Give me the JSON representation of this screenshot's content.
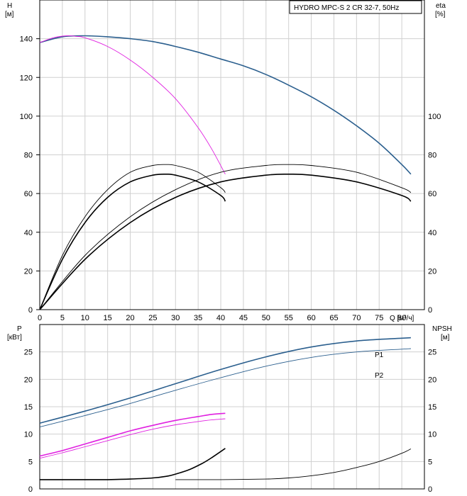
{
  "title": "HYDRO MPC-S 2 CR 32-7, 50Hz",
  "top": {
    "left_axis_label": "H",
    "left_axis_unit": "[м]",
    "right_axis_label": "eta",
    "right_axis_unit": "[%]",
    "x_unit": "Q [м³/ч]",
    "x_ticks": [
      "0",
      "5",
      "10",
      "15",
      "20",
      "25",
      "30",
      "35",
      "40",
      "45",
      "50",
      "55",
      "60",
      "65",
      "70",
      "75",
      "80"
    ],
    "left_ticks": [
      "0",
      "20",
      "40",
      "60",
      "80",
      "100",
      "120",
      "140"
    ],
    "right_ticks": [
      "0",
      "20",
      "40",
      "60",
      "80",
      "100"
    ]
  },
  "bottom": {
    "left_axis_label": "P",
    "left_axis_unit": "[кВт]",
    "right_axis_label": "NPSH",
    "right_axis_unit": "[м]",
    "left_ticks": [
      "0",
      "5",
      "10",
      "15",
      "20",
      "25"
    ],
    "right_ticks": [
      "0",
      "5",
      "10",
      "15",
      "20",
      "25"
    ],
    "p1_label": "P1",
    "p2_label": "P2"
  },
  "colors": {
    "head_2pumps": "#2b5f8e",
    "head_1pump": "#e020e0",
    "efficiency": "#000000",
    "power_2pumps": "#2b5f8e",
    "power_1pump": "#e020e0",
    "npsh": "#000000"
  },
  "chart_data": [
    {
      "type": "line",
      "title": "HYDRO MPC-S 2 CR 32-7, 50Hz",
      "xlabel": "Q [м³/ч]",
      "ylabel": "H [м]",
      "y2label": "eta [%]",
      "xlim": [
        0,
        85
      ],
      "ylim": [
        0,
        160
      ],
      "y2lim": [
        0,
        160
      ],
      "grid": true,
      "series": [
        {
          "color": "#2b5f8e",
          "axis": "left",
          "x": [
            0,
            5,
            10,
            15,
            20,
            25,
            30,
            35,
            40,
            45,
            50,
            55,
            60,
            65,
            70,
            75,
            80,
            82
          ],
          "y": [
            138,
            141,
            141.5,
            141,
            140,
            138.5,
            136,
            133,
            129.5,
            126,
            121.5,
            116,
            110,
            103,
            95,
            86,
            75,
            70
          ]
        },
        {
          "color": "#e020e0",
          "axis": "left",
          "x": [
            0,
            3,
            6,
            8,
            10,
            15,
            20,
            25,
            30,
            35,
            38,
            41
          ],
          "y": [
            138,
            140.5,
            141.5,
            141.2,
            140.5,
            136,
            129,
            120,
            109,
            94,
            83,
            70
          ]
        },
        {
          "color": "#000000",
          "axis": "right",
          "x": [
            0,
            5,
            10,
            15,
            20,
            25,
            28,
            30,
            35,
            40,
            41
          ],
          "y": [
            0,
            26,
            45,
            58,
            66,
            69.5,
            70,
            69.5,
            66,
            59,
            56
          ]
        },
        {
          "color": "#000000",
          "axis": "right",
          "x": [
            0,
            5,
            10,
            15,
            20,
            25,
            28,
            30,
            35,
            40,
            41
          ],
          "y": [
            0,
            28,
            48,
            62,
            71,
            74.5,
            75,
            74.5,
            71,
            63,
            60.5
          ]
        },
        {
          "color": "#000000",
          "axis": "right",
          "x": [
            0,
            10,
            20,
            30,
            40,
            50,
            55,
            60,
            70,
            80,
            82
          ],
          "y": [
            0,
            26,
            45,
            58,
            66,
            69.5,
            70,
            69.5,
            66,
            59,
            56
          ]
        },
        {
          "color": "#000000",
          "axis": "right",
          "x": [
            0,
            10,
            20,
            30,
            40,
            50,
            55,
            60,
            70,
            80,
            82
          ],
          "y": [
            0,
            28,
            48,
            62,
            71,
            74.5,
            75,
            74.5,
            71,
            63,
            60.5
          ]
        }
      ]
    },
    {
      "type": "line",
      "xlabel": "Q [м³/ч]",
      "ylabel": "P [кВт]",
      "y2label": "NPSH [м]",
      "xlim": [
        0,
        85
      ],
      "ylim": [
        0,
        30
      ],
      "y2lim": [
        0,
        30
      ],
      "grid": true,
      "series": [
        {
          "name": "P1",
          "color": "#2b5f8e",
          "axis": "left",
          "x": [
            0,
            10,
            20,
            30,
            40,
            50,
            60,
            70,
            80,
            82
          ],
          "y": [
            12,
            14.2,
            16.6,
            19.2,
            21.8,
            24.1,
            25.9,
            27,
            27.5,
            27.6
          ]
        },
        {
          "name": "P2",
          "color": "#2b5f8e",
          "axis": "left",
          "x": [
            0,
            10,
            20,
            30,
            40,
            50,
            60,
            70,
            80,
            82
          ],
          "y": [
            11.3,
            13.4,
            15.6,
            18,
            20.3,
            22.4,
            24,
            25,
            25.5,
            25.6
          ]
        },
        {
          "color": "#e020e0",
          "axis": "left",
          "x": [
            0,
            5,
            10,
            15,
            20,
            25,
            30,
            35,
            38,
            41
          ],
          "y": [
            6,
            7,
            8.2,
            9.4,
            10.6,
            11.6,
            12.5,
            13.2,
            13.6,
            13.8
          ]
        },
        {
          "color": "#e020e0",
          "axis": "left",
          "x": [
            0,
            5,
            10,
            15,
            20,
            25,
            30,
            35,
            38,
            41
          ],
          "y": [
            5.6,
            6.6,
            7.7,
            8.8,
            9.9,
            10.9,
            11.7,
            12.3,
            12.6,
            12.8
          ]
        },
        {
          "color": "#000000",
          "axis": "right",
          "x": [
            0,
            10,
            15,
            20,
            25,
            28,
            30,
            33,
            36,
            38,
            41
          ],
          "y": [
            1.7,
            1.7,
            1.7,
            1.8,
            2,
            2.3,
            2.7,
            3.5,
            4.7,
            5.7,
            7.4
          ]
        },
        {
          "color": "#000000",
          "axis": "right",
          "x": [
            30,
            40,
            50,
            55,
            60,
            65,
            70,
            75,
            80,
            82
          ],
          "y": [
            1.7,
            1.7,
            1.8,
            2,
            2.4,
            3,
            3.9,
            5,
            6.5,
            7.3
          ]
        }
      ]
    }
  ]
}
